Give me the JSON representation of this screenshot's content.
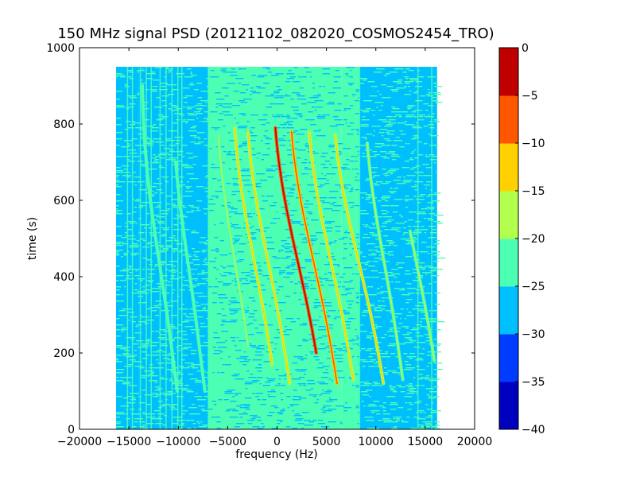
{
  "chart_data": {
    "type": "heatmap",
    "title": "150 MHz signal PSD (20121102_082020_COSMOS2454_TRO)",
    "xlabel": "frequency (Hz)",
    "ylabel": "time (s)",
    "xlim": [
      -20000,
      20000
    ],
    "ylim": [
      0,
      1000
    ],
    "xticks": [
      -20000,
      -15000,
      -10000,
      -5000,
      0,
      5000,
      10000,
      15000,
      20000
    ],
    "yticks": [
      0,
      200,
      400,
      600,
      800,
      1000
    ],
    "data_extent": {
      "x": [
        -16300,
        16200
      ],
      "y": [
        0,
        950
      ]
    },
    "colorbar": {
      "ticks": [
        0,
        -5,
        -10,
        -15,
        -20,
        -25,
        -30,
        -35,
        -40
      ],
      "range": [
        -40,
        0
      ],
      "colors": [
        "#0000bf",
        "#003cff",
        "#00bfff",
        "#4dffb3",
        "#b3ff4d",
        "#ffd100",
        "#ff5600",
        "#bf0000"
      ]
    },
    "background_bands": [
      {
        "x": [
          -16300,
          -14000
        ],
        "level": -27
      },
      {
        "x": [
          -14000,
          -7000
        ],
        "level": -26
      },
      {
        "x": [
          -7000,
          6500
        ],
        "level": -22
      },
      {
        "x": [
          6500,
          8300
        ],
        "level": -24
      },
      {
        "x": [
          8300,
          16200
        ],
        "level": -28
      }
    ],
    "series": [
      {
        "x_at_800": -13500,
        "x_at_100": -10500,
        "y_top": 900,
        "y_bottom": 100,
        "level": -21
      },
      {
        "x_at_800": -10500,
        "x_at_100": -7700,
        "y_top": 700,
        "y_bottom": 100,
        "level": -21
      },
      {
        "x_at_800": -6000,
        "x_at_100": -2700,
        "y_top": 770,
        "y_bottom": 220,
        "level": -17
      },
      {
        "x_at_800": -4300,
        "x_at_100": -500,
        "y_top": 790,
        "y_bottom": 170,
        "level": -14
      },
      {
        "x_at_800": -3000,
        "x_at_100": 1000,
        "y_top": 780,
        "y_bottom": 120,
        "level": -13
      },
      {
        "x_at_800": -200,
        "x_at_100": 4200,
        "y_top": 790,
        "y_bottom": 200,
        "level": -4
      },
      {
        "x_at_800": 1400,
        "x_at_100": 5800,
        "y_top": 780,
        "y_bottom": 120,
        "level": -6
      },
      {
        "x_at_800": 3200,
        "x_at_100": 7500,
        "y_top": 780,
        "y_bottom": 130,
        "level": -11
      },
      {
        "x_at_800": 5800,
        "x_at_100": 10500,
        "y_top": 770,
        "y_bottom": 120,
        "level": -12
      },
      {
        "x_at_800": 9000,
        "x_at_100": 12500,
        "y_top": 750,
        "y_bottom": 130,
        "level": -19
      },
      {
        "x_at_800": 12000,
        "x_at_100": 16000,
        "y_top": 520,
        "y_bottom": 180,
        "level": -20
      }
    ]
  }
}
